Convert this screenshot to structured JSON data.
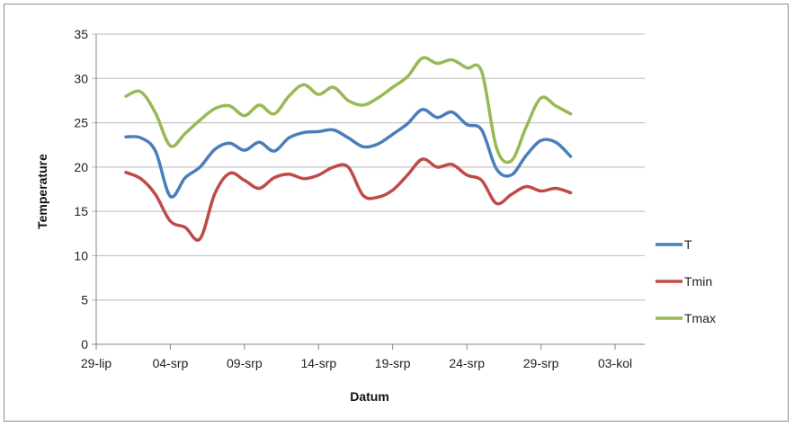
{
  "chart_data": {
    "type": "line",
    "xlabel": "Datum",
    "ylabel": "Temperature",
    "ylim": [
      0,
      35
    ],
    "yticks": [
      0,
      5,
      10,
      15,
      20,
      25,
      30,
      35
    ],
    "xlim": [
      0,
      37
    ],
    "xticks": [
      {
        "pos": 0,
        "label": "29-lip"
      },
      {
        "pos": 5,
        "label": "04-srp"
      },
      {
        "pos": 10,
        "label": "09-srp"
      },
      {
        "pos": 15,
        "label": "14-srp"
      },
      {
        "pos": 20,
        "label": "19-srp"
      },
      {
        "pos": 25,
        "label": "24-srp"
      },
      {
        "pos": 30,
        "label": "29-srp"
      },
      {
        "pos": 35,
        "label": "03-kol"
      }
    ],
    "x": [
      2,
      3,
      4,
      5,
      6,
      7,
      8,
      9,
      10,
      11,
      12,
      13,
      14,
      15,
      16,
      17,
      18,
      19,
      20,
      21,
      22,
      23,
      24,
      25,
      26,
      27,
      28,
      29,
      30,
      31,
      32
    ],
    "grid": "horizontal",
    "legend": "right",
    "series": [
      {
        "name": "T",
        "color": "#4a7ebb",
        "values": [
          23.4,
          23.3,
          21.8,
          16.7,
          18.8,
          20.0,
          22.0,
          22.7,
          21.9,
          22.8,
          21.8,
          23.3,
          23.9,
          24.0,
          24.2,
          23.3,
          22.3,
          22.6,
          23.7,
          24.9,
          26.5,
          25.6,
          26.2,
          24.8,
          24.2,
          19.8,
          19.1,
          21.3,
          23.0,
          22.8,
          21.2
        ]
      },
      {
        "name": "Tmin",
        "color": "#be4b48",
        "values": [
          19.4,
          18.7,
          16.9,
          13.9,
          13.2,
          11.9,
          17.0,
          19.3,
          18.5,
          17.6,
          18.8,
          19.2,
          18.7,
          19.1,
          20.0,
          20.0,
          16.8,
          16.6,
          17.4,
          19.1,
          20.9,
          20.0,
          20.3,
          19.1,
          18.5,
          15.9,
          16.9,
          17.8,
          17.3,
          17.6,
          17.1
        ]
      },
      {
        "name": "Tmax",
        "color": "#98b954",
        "values": [
          28.0,
          28.5,
          26.1,
          22.4,
          23.8,
          25.3,
          26.6,
          26.9,
          25.8,
          27.0,
          26.0,
          28.0,
          29.3,
          28.2,
          29.0,
          27.5,
          27.0,
          27.8,
          29.0,
          30.2,
          32.3,
          31.7,
          32.1,
          31.2,
          30.8,
          22.2,
          20.7,
          24.5,
          27.8,
          26.9,
          26.0
        ]
      }
    ]
  }
}
